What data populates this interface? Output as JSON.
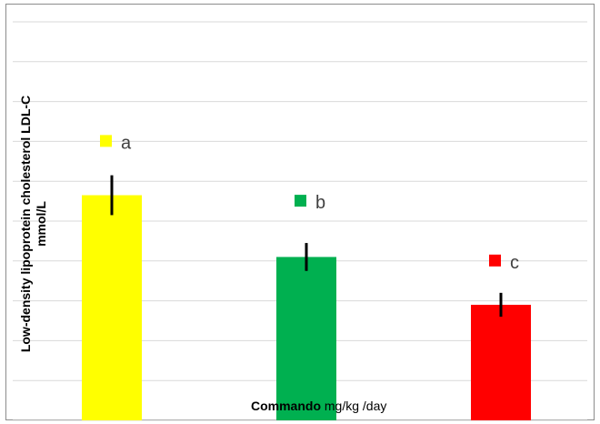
{
  "chart_data": {
    "type": "bar",
    "title": "",
    "ylabel_line1": "Low-density lipoprotein cholesterol LDL-C",
    "ylabel_line2": "mmol/L",
    "xlabel_bold": "Commando",
    "xlabel_rest": "mg/kg /day",
    "ylim": [
      0,
      10
    ],
    "grid": true,
    "categories": [
      "",
      "",
      ""
    ],
    "values": [
      5.65,
      4.1,
      2.9
    ],
    "errors": [
      0.5,
      0.35,
      0.3
    ],
    "colors": [
      "#ffff00",
      "#00b050",
      "#ff0000"
    ],
    "annotations": [
      {
        "label": "a",
        "y": 7.0
      },
      {
        "label": "b",
        "y": 5.5
      },
      {
        "label": "c",
        "y": 4.0
      }
    ]
  }
}
